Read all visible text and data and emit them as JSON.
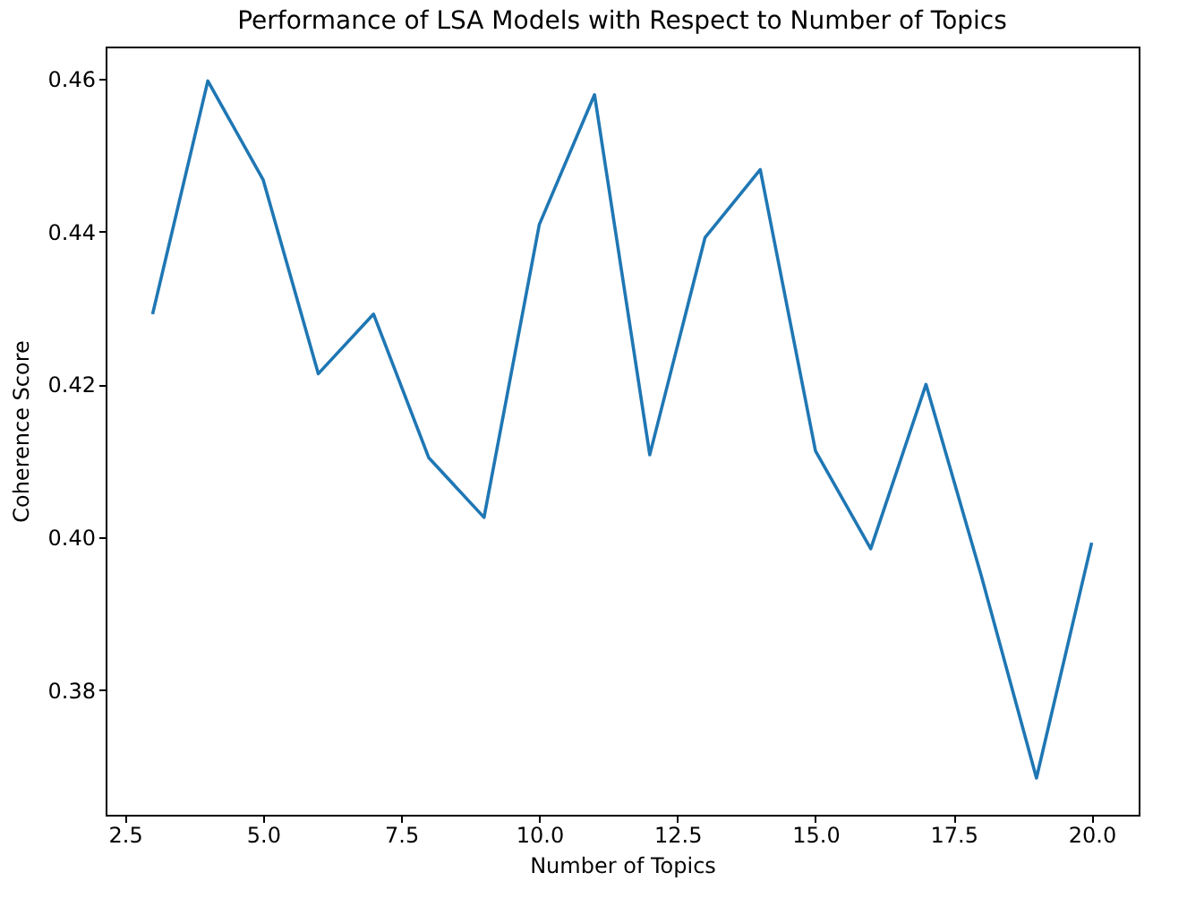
{
  "chart_data": {
    "type": "line",
    "title": "Performance of LSA Models with Respect to Number of Topics",
    "xlabel": "Number of Topics",
    "ylabel": "Coherence Score",
    "x": [
      3,
      4,
      5,
      6,
      7,
      8,
      9,
      10,
      11,
      12,
      13,
      14,
      15,
      16,
      17,
      18,
      19,
      20
    ],
    "series": [
      {
        "color": "#1f77b4",
        "values": [
          0.4292,
          0.4597,
          0.4468,
          0.4214,
          0.4292,
          0.4104,
          0.4026,
          0.4409,
          0.4579,
          0.4108,
          0.4392,
          0.4481,
          0.4113,
          0.3985,
          0.42,
          0.395,
          0.3685,
          0.3993
        ]
      }
    ],
    "xlim": [
      2.15,
      20.85
    ],
    "xticks": [
      {
        "value": 2.5,
        "label": "2.5"
      },
      {
        "value": 5,
        "label": "5.0"
      },
      {
        "value": 7.5,
        "label": "7.5"
      },
      {
        "value": 10,
        "label": "10.0"
      },
      {
        "value": 12.5,
        "label": "12.5"
      },
      {
        "value": 15,
        "label": "15.0"
      },
      {
        "value": 17.5,
        "label": "17.5"
      },
      {
        "value": 20,
        "label": "20.0"
      }
    ],
    "ylim": [
      0.3637,
      0.4642
    ],
    "yticks": [
      {
        "value": 0.38,
        "label": "0.38"
      },
      {
        "value": 0.4,
        "label": "0.40"
      },
      {
        "value": 0.42,
        "label": "0.42"
      },
      {
        "value": 0.44,
        "label": "0.44"
      },
      {
        "value": 0.46,
        "label": "0.46"
      }
    ],
    "grid": false,
    "legend": false,
    "marker": "none",
    "line_style": "solid"
  }
}
